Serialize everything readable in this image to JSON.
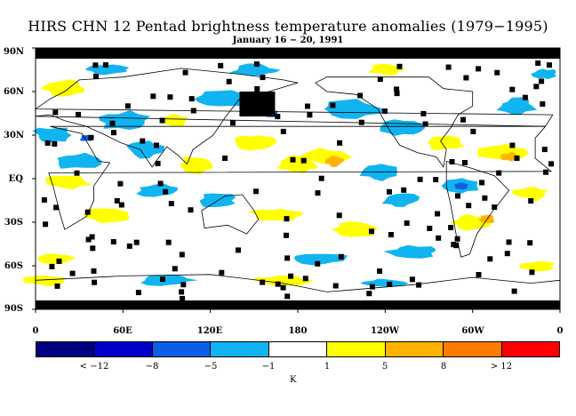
{
  "title": "HIRS CHN 12 Pentad brightness temperature anomalies (1979−1995)",
  "subtitle": "January 16 − 20, 1991",
  "lat_labels": [
    "90N",
    "60N",
    "30N",
    "EQ",
    "30S",
    "60S",
    "90S"
  ],
  "lon_labels": [
    "0",
    "60E",
    "120E",
    "180",
    "120W",
    "60W",
    "0"
  ],
  "legend": {
    "labels": [
      "< −12",
      "−8",
      "−5",
      "−1",
      "1",
      "5",
      "8",
      "> 12"
    ],
    "unit": "K",
    "colors": [
      "#000080",
      "#0000c8",
      "#0a5fe6",
      "#11b4f0",
      "#ffffff",
      "#ffff00",
      "#ffb300",
      "#ff7a00",
      "#ff0000"
    ]
  },
  "map": {
    "no_data_color": "#000000",
    "coastline_color": "#000000"
  }
}
